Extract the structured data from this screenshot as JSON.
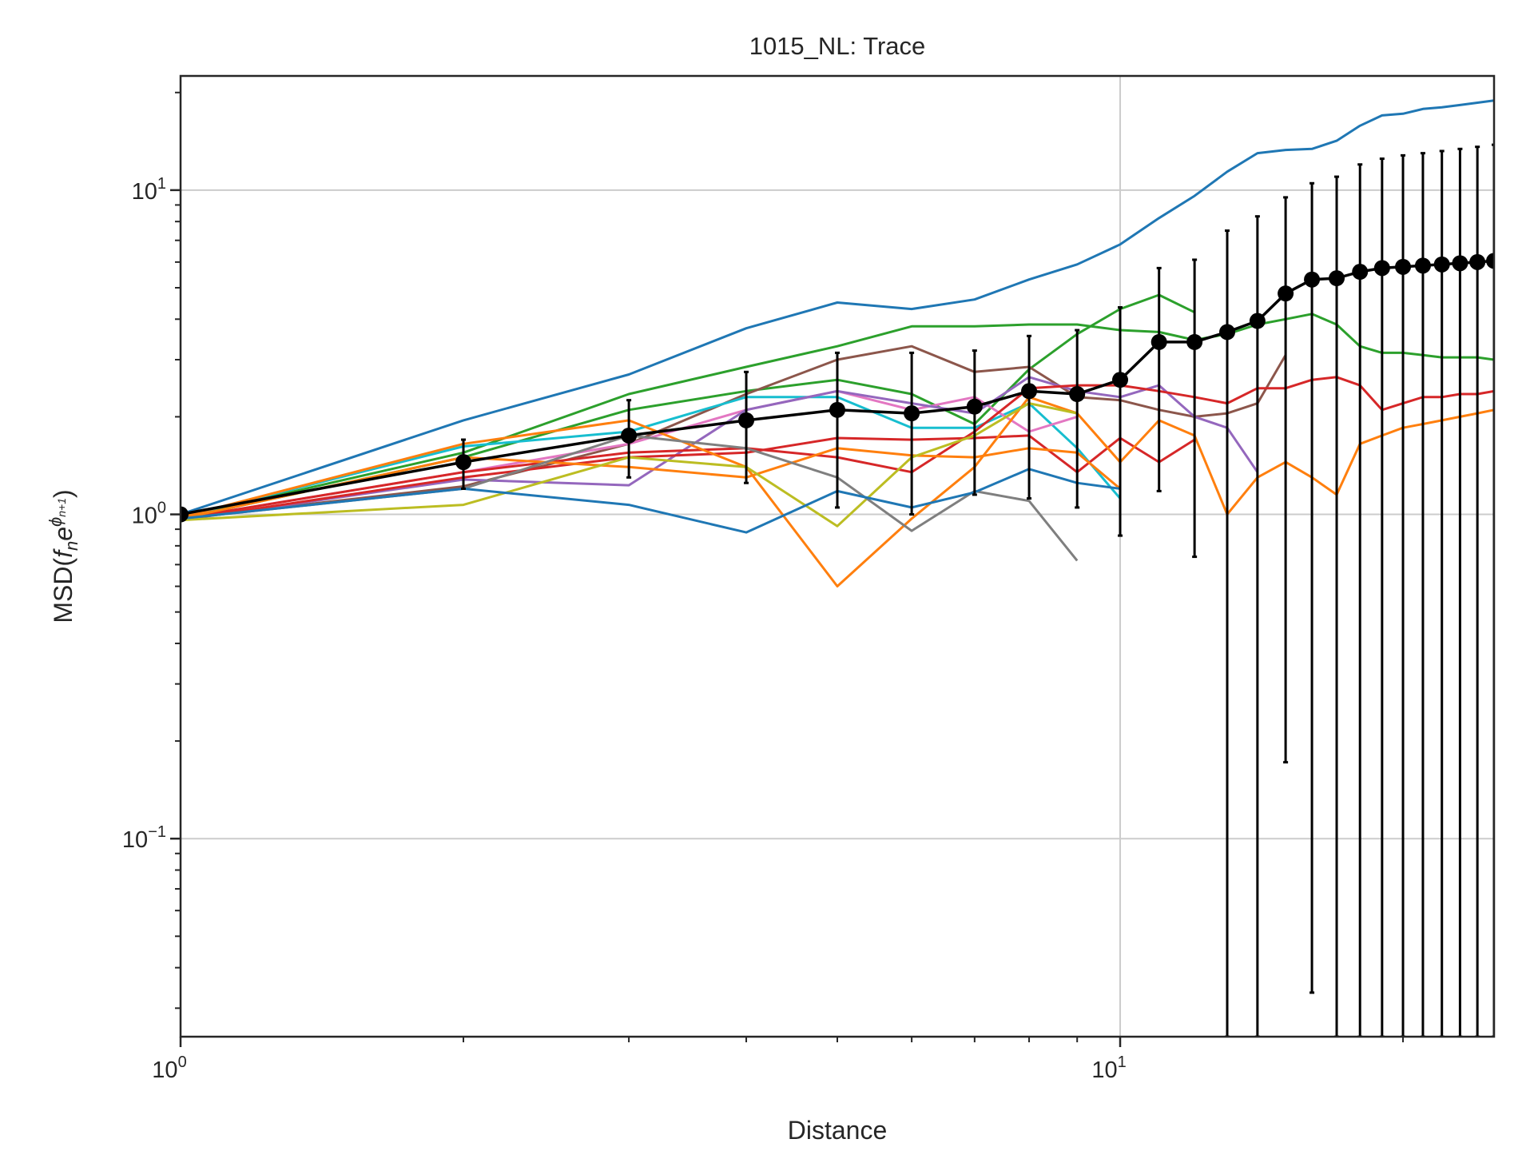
{
  "chart_data": {
    "type": "line",
    "title": "1015_NL: Trace",
    "xlabel": "Distance",
    "ylabel": "MSD(f_n e^{ϕ_{n+1}})",
    "ylabel_parts": {
      "prefix": "MSD(",
      "f": "f",
      "n": "n",
      "e": "e",
      "phi": "ϕ",
      "sub": "n+1",
      "suffix": ")"
    },
    "xscale": "log",
    "yscale": "log",
    "xlim": [
      1,
      25
    ],
    "ylim": [
      0.0245,
      22.5
    ],
    "x_ticks": [
      {
        "value": 1,
        "base": "10",
        "exp": "0"
      },
      {
        "value": 10,
        "base": "10",
        "exp": "1"
      }
    ],
    "y_ticks": [
      {
        "value": 0.1,
        "base": "10",
        "exp": "−1"
      },
      {
        "value": 1,
        "base": "10",
        "exp": "0"
      },
      {
        "value": 10,
        "base": "10",
        "exp": "1"
      }
    ],
    "grid": true,
    "series": [
      {
        "color": "#1f77b4",
        "x": [
          1,
          2,
          3,
          4,
          5,
          6,
          7,
          8,
          9,
          10,
          11,
          12,
          13,
          14,
          15,
          16,
          17,
          18,
          19,
          20,
          21,
          22,
          23,
          24,
          25
        ],
        "y": [
          1.0,
          1.95,
          2.7,
          3.75,
          4.5,
          4.3,
          4.6,
          5.3,
          5.9,
          6.8,
          8.2,
          9.6,
          11.4,
          13.0,
          13.3,
          13.4,
          14.2,
          15.8,
          17.0,
          17.2,
          17.8,
          18.0,
          18.3,
          18.6,
          18.9
        ]
      },
      {
        "color": "#2ca02c",
        "x": [
          1,
          2,
          3,
          4,
          5,
          6,
          7,
          8,
          9,
          10,
          11,
          12,
          13,
          14,
          15,
          16,
          17,
          18,
          19,
          20,
          21,
          22,
          23,
          24,
          25
        ],
        "y": [
          0.98,
          1.55,
          2.35,
          2.85,
          3.3,
          3.8,
          3.8,
          3.85,
          3.85,
          3.7,
          3.65,
          3.45,
          3.6,
          3.85,
          4.0,
          4.15,
          3.85,
          3.3,
          3.15,
          3.15,
          3.1,
          3.05,
          3.05,
          3.05,
          3.0
        ]
      },
      {
        "color": "#2ca02c",
        "x": [
          1,
          2,
          3,
          4,
          5,
          6,
          7,
          8,
          9,
          10,
          11,
          12
        ],
        "y": [
          0.97,
          1.5,
          2.1,
          2.4,
          2.6,
          2.35,
          1.9,
          2.8,
          3.6,
          4.3,
          4.75,
          4.2
        ]
      },
      {
        "color": "#8c564b",
        "x": [
          1,
          2,
          3,
          4,
          5,
          6,
          7,
          8,
          9,
          10,
          11,
          12,
          13,
          14,
          15
        ],
        "y": [
          0.97,
          1.22,
          1.65,
          2.35,
          3.0,
          3.3,
          2.75,
          2.85,
          2.3,
          2.25,
          2.1,
          2.0,
          2.05,
          2.2,
          3.1
        ]
      },
      {
        "color": "#17becf",
        "x": [
          1,
          2,
          3,
          4,
          5,
          6,
          7,
          8,
          9,
          10
        ],
        "y": [
          0.98,
          1.62,
          1.8,
          2.3,
          2.3,
          1.85,
          1.85,
          2.2,
          1.6,
          1.12
        ]
      },
      {
        "color": "#e377c2",
        "x": [
          1,
          2,
          3,
          4,
          5,
          6,
          7,
          8,
          9
        ],
        "y": [
          0.97,
          1.35,
          1.65,
          2.1,
          2.4,
          2.1,
          2.3,
          1.8,
          2.0
        ]
      },
      {
        "color": "#9467bd",
        "x": [
          1,
          2,
          3,
          4,
          5,
          6,
          7,
          8,
          9,
          10,
          11,
          12,
          13,
          14
        ],
        "y": [
          0.96,
          1.28,
          1.23,
          2.1,
          2.4,
          2.2,
          2.05,
          2.65,
          2.4,
          2.3,
          2.5,
          2.0,
          1.85,
          1.35
        ]
      },
      {
        "color": "#d62728",
        "x": [
          1,
          2,
          3,
          4,
          5,
          6,
          7,
          8,
          9,
          10,
          11,
          12,
          13,
          14,
          15,
          16,
          17,
          18,
          19,
          20,
          21,
          22,
          23,
          24,
          25
        ],
        "y": [
          0.97,
          1.35,
          1.55,
          1.6,
          1.5,
          1.35,
          1.8,
          2.45,
          2.5,
          2.5,
          2.4,
          2.3,
          2.2,
          2.45,
          2.45,
          2.6,
          2.65,
          2.5,
          2.1,
          2.2,
          2.3,
          2.3,
          2.35,
          2.35,
          2.4
        ]
      },
      {
        "color": "#d62728",
        "x": [
          1,
          2,
          3,
          4,
          5,
          6,
          7,
          8,
          9,
          10,
          11,
          12
        ],
        "y": [
          0.96,
          1.3,
          1.5,
          1.55,
          1.72,
          1.7,
          1.72,
          1.75,
          1.35,
          1.72,
          1.45,
          1.7
        ]
      },
      {
        "color": "#ff7f0e",
        "x": [
          1,
          2,
          3,
          4,
          5,
          6,
          7,
          8,
          9,
          10,
          11,
          12,
          13,
          14,
          15,
          16,
          17,
          18,
          19,
          20,
          21,
          22,
          23,
          24,
          25
        ],
        "y": [
          0.98,
          1.65,
          1.95,
          1.4,
          0.6,
          0.97,
          1.4,
          2.3,
          2.05,
          1.45,
          1.95,
          1.75,
          1.0,
          1.3,
          1.45,
          1.3,
          1.15,
          1.65,
          1.75,
          1.85,
          1.9,
          1.95,
          2.0,
          2.05,
          2.1
        ]
      },
      {
        "color": "#ff7f0e",
        "x": [
          1,
          2,
          3,
          4,
          5,
          6,
          7,
          8,
          9,
          10
        ],
        "y": [
          0.97,
          1.5,
          1.4,
          1.3,
          1.6,
          1.52,
          1.5,
          1.6,
          1.55,
          1.2
        ]
      },
      {
        "color": "#bcbd22",
        "x": [
          1,
          2,
          3,
          4,
          5,
          6,
          7,
          8,
          9
        ],
        "y": [
          0.96,
          1.07,
          1.5,
          1.4,
          0.92,
          1.5,
          1.75,
          2.2,
          2.05
        ]
      },
      {
        "color": "#7f7f7f",
        "x": [
          1,
          2,
          3,
          4,
          5,
          6,
          7,
          8,
          9
        ],
        "y": [
          0.97,
          1.2,
          1.75,
          1.6,
          1.3,
          0.89,
          1.18,
          1.1,
          0.72
        ]
      },
      {
        "color": "#1f77b4",
        "x": [
          1,
          2,
          3,
          4,
          5,
          6,
          7,
          8,
          9,
          10
        ],
        "y": [
          0.97,
          1.2,
          1.07,
          0.88,
          1.18,
          1.05,
          1.17,
          1.38,
          1.25,
          1.2
        ]
      }
    ],
    "mean_series": {
      "color": "#000000",
      "x": [
        1,
        2,
        3,
        4,
        5,
        6,
        7,
        8,
        9,
        10,
        11,
        12,
        13,
        14,
        15,
        16,
        17,
        18,
        19,
        20,
        21,
        22,
        23,
        24,
        25
      ],
      "y": [
        1.0,
        1.45,
        1.75,
        1.95,
        2.1,
        2.05,
        2.15,
        2.4,
        2.35,
        2.6,
        3.4,
        3.4,
        3.65,
        3.95,
        4.8,
        5.3,
        5.35,
        5.6,
        5.75,
        5.8,
        5.85,
        5.9,
        5.95,
        6.0,
        6.05
      ],
      "yerr_low": [
        null,
        1.2,
        1.3,
        1.25,
        1.05,
        1.0,
        1.15,
        1.12,
        1.05,
        0.86,
        1.18,
        0.74,
        0.0245,
        0.0245,
        0.172,
        0.0335,
        0.0245,
        0.0245,
        0.0245,
        0.0245,
        0.0245,
        0.0245,
        0.0245,
        0.0245,
        0.0245
      ],
      "yerr_high": [
        null,
        1.7,
        2.25,
        2.75,
        3.15,
        3.15,
        3.2,
        3.55,
        3.7,
        4.35,
        5.75,
        6.1,
        7.5,
        8.3,
        9.5,
        10.5,
        11.0,
        12.0,
        12.5,
        12.8,
        13.0,
        13.2,
        13.4,
        13.6,
        13.8
      ]
    }
  }
}
